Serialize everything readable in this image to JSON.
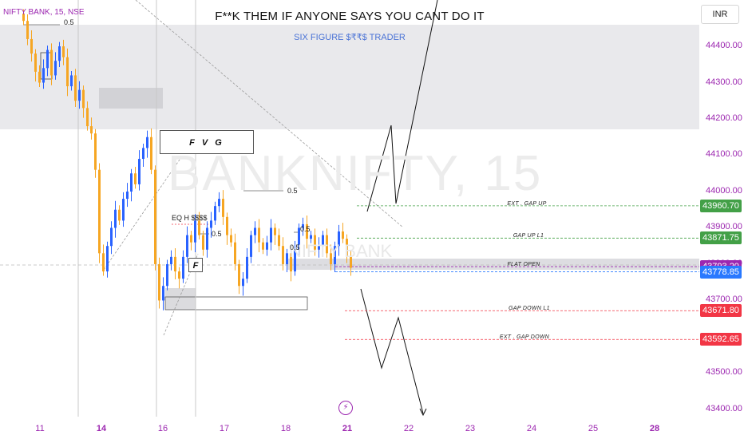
{
  "header": {
    "symbol": "NIFTY BANK, 15, NSE",
    "headline": "F**K THEM IF ANYONE SAYS YOU CANT DO IT",
    "subline": "SIX FIGURE $₹₹$ TRADER",
    "watermark": "BANKNIFTY, 15",
    "watermark_sub": "NIFTY BANK",
    "currency": "INR"
  },
  "annotations": {
    "fvg_label": "F V G",
    "f_label": "F",
    "eq_high": "EQ H  $$$$",
    "fib_half": "0.5",
    "flash_icon": "lightning-icon"
  },
  "levels": [
    {
      "label": "EXT . GAP UP",
      "value": "43960.70",
      "price": 43960.7,
      "color": "#43a047"
    },
    {
      "label": "GAP UP L1",
      "value": "43871.75",
      "price": 43871.75,
      "color": "#43a047"
    },
    {
      "label": "FLAT OPEN",
      "value": "43793.20",
      "price": 43793.2,
      "color": "#9c27b0"
    },
    {
      "label": "",
      "value": "43778.85",
      "price": 43778.85,
      "color": "#2979ff"
    },
    {
      "label": "GAP DOWN L1",
      "value": "43671.80",
      "price": 43671.8,
      "color": "#f23645"
    },
    {
      "label": "EXT . GAP DOWN",
      "value": "43592.65",
      "price": 43592.65,
      "color": "#f23645"
    }
  ],
  "chart_data": {
    "type": "candlestick",
    "title": "NIFTY BANK, 15, NSE",
    "y_ticks": [
      "44400.00",
      "44300.00",
      "44200.00",
      "44100.00",
      "44000.00",
      "43900.00",
      "43800.00",
      "43700.00",
      "43500.00",
      "43400.00"
    ],
    "x_ticks": [
      {
        "label": "11",
        "bold": false
      },
      {
        "label": "14",
        "bold": true
      },
      {
        "label": "16",
        "bold": false
      },
      {
        "label": "17",
        "bold": false
      },
      {
        "label": "18",
        "bold": false
      },
      {
        "label": "21",
        "bold": true
      },
      {
        "label": "22",
        "bold": false
      },
      {
        "label": "23",
        "bold": false
      },
      {
        "label": "24",
        "bold": false
      },
      {
        "label": "25",
        "bold": false
      },
      {
        "label": "28",
        "bold": true
      }
    ],
    "ylim": [
      43380,
      44510
    ],
    "colors": {
      "up": "#2962ff",
      "down": "#f6a623"
    },
    "grid": false,
    "candles_close": [
      44470,
      44420,
      44380,
      44330,
      44300,
      44340,
      44390,
      44320,
      44360,
      44400,
      44370,
      44290,
      44320,
      44250,
      44280,
      44230,
      44180,
      44160,
      44060,
      43830,
      43780,
      43850,
      43900,
      43950,
      43920,
      43980,
      44000,
      44050,
      44020,
      44090,
      44120,
      44150,
      44060,
      43800,
      43700,
      43740,
      43800,
      43820,
      43780,
      43760,
      43820,
      43880,
      43860,
      43920,
      43880,
      43840,
      43900,
      43920,
      43960,
      43980,
      43930,
      43880,
      43860,
      43800,
      43740,
      43760,
      43820,
      43880,
      43900,
      43860,
      43840,
      43860,
      43900,
      43880,
      43850,
      43800,
      43830,
      43780,
      43840,
      43900,
      43910,
      43870,
      43880,
      43840,
      43850,
      43880,
      43830,
      43800,
      43850,
      43890,
      43870,
      43820,
      43790
    ]
  }
}
